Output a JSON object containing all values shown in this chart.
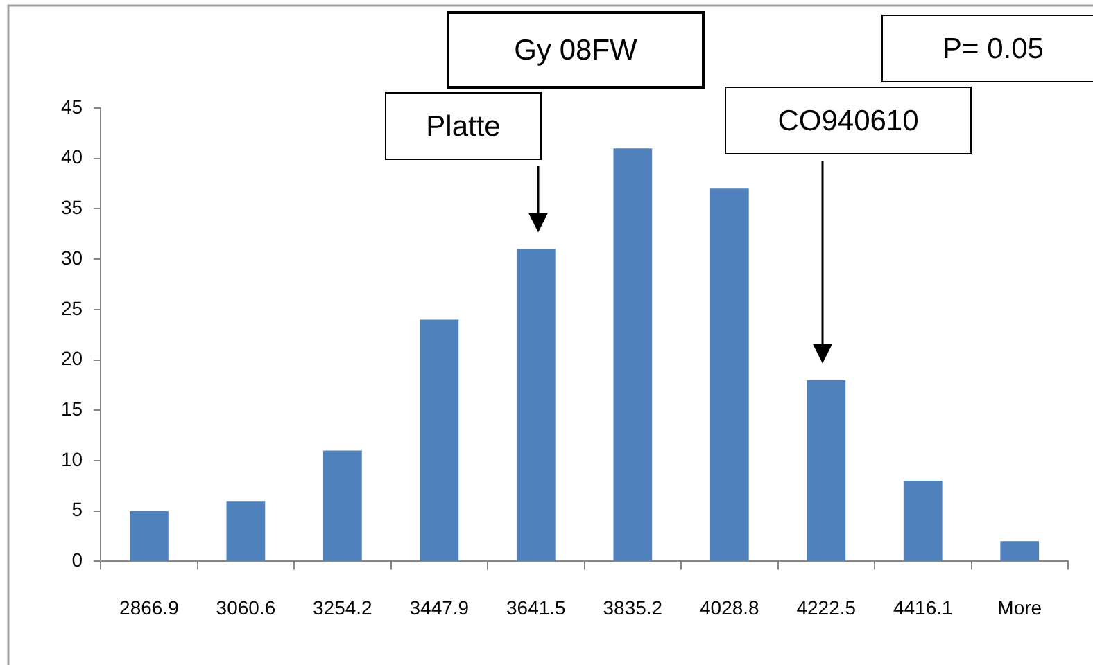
{
  "chart_data": {
    "type": "bar",
    "categories": [
      "2866.9",
      "3060.6",
      "3254.2",
      "3447.9",
      "3641.5",
      "3835.2",
      "4028.8",
      "4222.5",
      "4416.1",
      "More"
    ],
    "values": [
      5,
      6,
      11,
      24,
      31,
      41,
      37,
      18,
      8,
      2
    ],
    "color": "#4f81bd",
    "ylim": [
      0,
      45
    ],
    "yticks": [
      0,
      5,
      10,
      15,
      20,
      25,
      30,
      35,
      40,
      45
    ],
    "grid": false,
    "annotations": [
      "Platte",
      "Gy 08FW",
      "CO940610",
      "P= 0.05"
    ]
  }
}
